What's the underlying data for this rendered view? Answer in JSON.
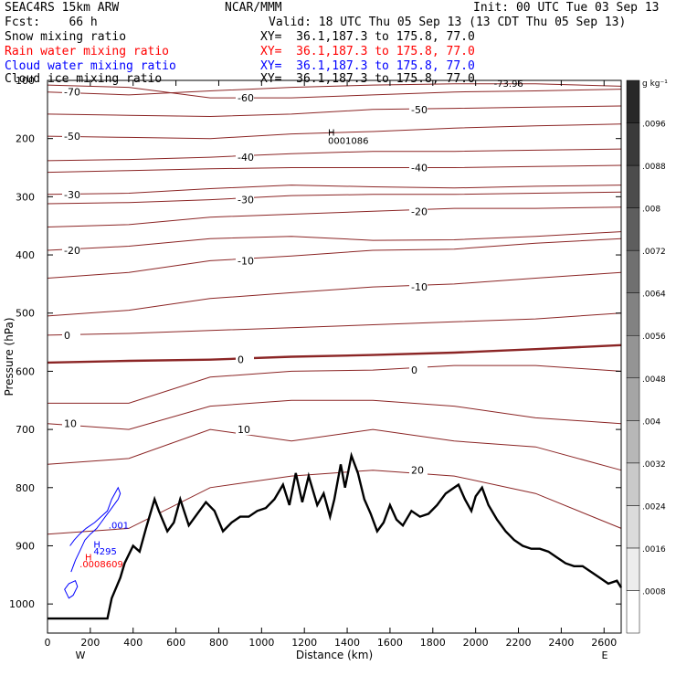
{
  "header": {
    "run": "SEAC4RS 15km ARW",
    "fcst": "Fcst:    66 h",
    "center": "NCAR/MMM",
    "init": "Init: 00 UTC Tue 03 Sep 13",
    "valid": "Valid: 18 UTC Thu 05 Sep 13 (13 CDT Thu 05 Sep 13)",
    "fields": [
      {
        "name": "Snow mixing ratio",
        "xy": "XY=  36.1,187.3 to 175.8, 77.0",
        "color": "#000000"
      },
      {
        "name": "Rain water mixing ratio",
        "xy": "XY=  36.1,187.3 to 175.8, 77.0",
        "color": "#ff0000"
      },
      {
        "name": "Cloud water mixing ratio",
        "xy": "XY=  36.1,187.3 to 175.8, 77.0",
        "color": "#0000ff"
      },
      {
        "name": "Cloud ice mixing ratio",
        "xy": "XY=  36.1,187.3 to 175.8, 77.0",
        "color": "#000000"
      }
    ]
  },
  "chart_data": {
    "type": "line",
    "xlabel": "Distance (km)",
    "ylabel": "Pressure (hPa)",
    "xlim": [
      0,
      2680
    ],
    "ylim": [
      1050,
      100
    ],
    "x_ticks": [
      0,
      200,
      400,
      600,
      800,
      1000,
      1200,
      1400,
      1600,
      1800,
      2000,
      2200,
      2400,
      2600
    ],
    "y_ticks": [
      100,
      200,
      300,
      400,
      500,
      600,
      700,
      800,
      900,
      1000
    ],
    "x_end_labels": [
      "W",
      "E"
    ],
    "colorbar": {
      "unit": "g kg⁻¹",
      "levels": [
        ".0008",
        ".0016",
        ".0024",
        ".0032",
        ".004",
        ".0048",
        ".0056",
        ".0064",
        ".0072",
        ".008",
        ".0088",
        ".0096"
      ]
    },
    "terrain": {
      "x": [
        0,
        60,
        120,
        180,
        240,
        280,
        300,
        340,
        360,
        400,
        430,
        460,
        480,
        500,
        520,
        560,
        590,
        620,
        660,
        700,
        740,
        780,
        820,
        860,
        900,
        940,
        980,
        1020,
        1060,
        1100,
        1130,
        1160,
        1190,
        1220,
        1260,
        1290,
        1320,
        1340,
        1370,
        1390,
        1420,
        1450,
        1480,
        1510,
        1540,
        1570,
        1600,
        1630,
        1660,
        1700,
        1740,
        1780,
        1820,
        1860,
        1900,
        1920,
        1950,
        1980,
        2000,
        2030,
        2060,
        2100,
        2140,
        2180,
        2220,
        2260,
        2300,
        2340,
        2380,
        2420,
        2460,
        2500,
        2540,
        2580,
        2620,
        2660,
        2680
      ],
      "y": [
        1025,
        1025,
        1025,
        1025,
        1025,
        1025,
        990,
        955,
        930,
        900,
        910,
        870,
        845,
        820,
        840,
        875,
        860,
        820,
        865,
        845,
        825,
        840,
        875,
        860,
        850,
        850,
        840,
        835,
        820,
        795,
        830,
        775,
        825,
        780,
        830,
        810,
        850,
        820,
        760,
        800,
        745,
        775,
        820,
        845,
        875,
        860,
        830,
        855,
        865,
        840,
        850,
        845,
        830,
        810,
        800,
        795,
        820,
        840,
        815,
        800,
        830,
        855,
        875,
        890,
        900,
        905,
        905,
        910,
        920,
        930,
        935,
        935,
        945,
        955,
        965,
        960,
        972
      ]
    },
    "contour_labels": [
      "-70",
      "-60",
      "-50",
      "-40",
      "-30",
      "-20",
      "-10",
      "0",
      "10",
      "20"
    ],
    "annotations": {
      "high_top": "H",
      "high_top_value": "0001086",
      "max_value_top": "-73.96",
      "cloud_value": ".001",
      "cloud_high": "H",
      "cloud_high_value": "4295",
      "rain_high": "H",
      "rain_high_value": ".0008609"
    }
  }
}
